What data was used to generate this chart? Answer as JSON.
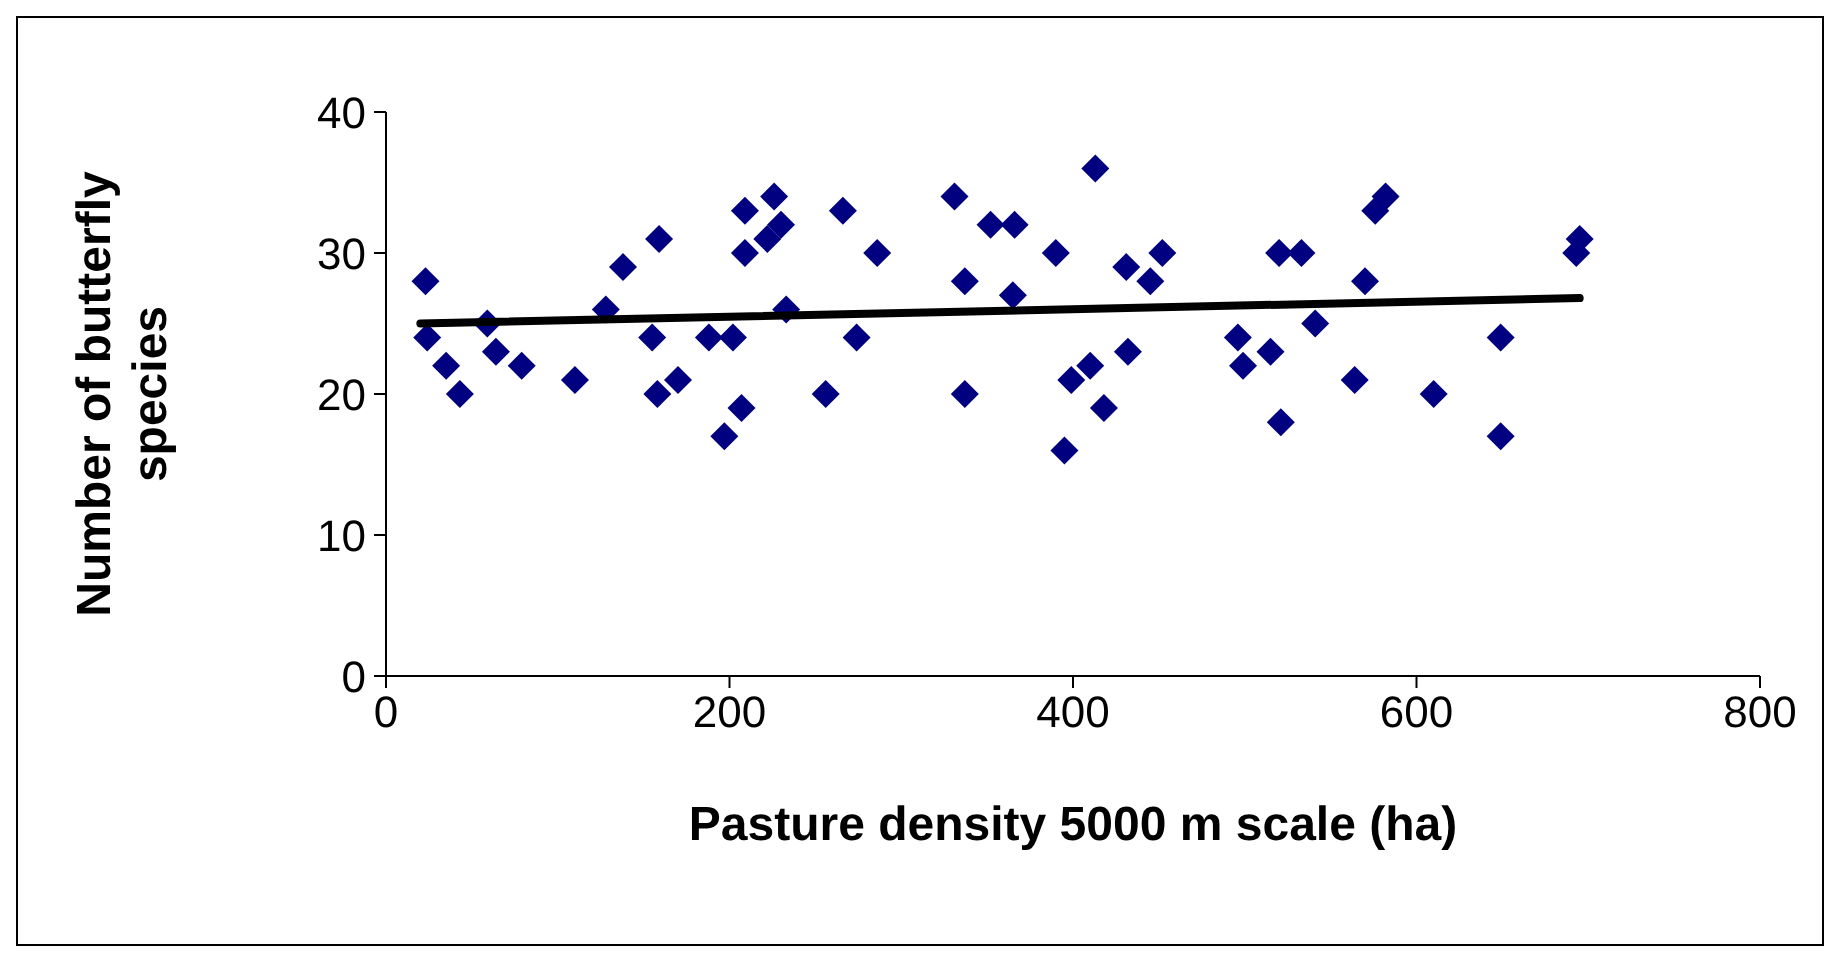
{
  "chart_data": {
    "type": "scatter",
    "xlabel": "Pasture density 5000 m scale (ha)",
    "ylabel": "Number of butterfly species",
    "xlim": [
      0,
      800
    ],
    "xticks": [
      0,
      200,
      400,
      600,
      800
    ],
    "ylim": [
      0,
      40
    ],
    "yticks": [
      0,
      10,
      20,
      30,
      40
    ],
    "grid": false,
    "legend": false,
    "marker": "diamond",
    "series": [
      {
        "color": "#000080",
        "x": [
          23,
          24,
          35,
          43,
          59,
          64,
          79,
          110,
          128,
          138,
          155,
          159,
          158,
          170,
          188,
          197,
          202,
          207,
          209,
          209,
          222,
          226,
          230,
          233,
          256,
          266,
          274,
          286,
          331,
          337,
          337,
          352,
          366,
          365,
          390,
          413,
          399,
          395,
          410,
          418,
          431,
          432,
          445,
          452,
          496,
          499,
          515,
          520,
          533,
          521,
          541,
          564,
          570,
          576,
          582,
          610,
          695,
          693,
          649,
          649
        ],
        "values": [
          28,
          24,
          22,
          20,
          25,
          23,
          22,
          21,
          26,
          29,
          24,
          31,
          20,
          21,
          24,
          17,
          24,
          19,
          33,
          30,
          31,
          34,
          32,
          26,
          20,
          33,
          24,
          30,
          34,
          28,
          20,
          32,
          32,
          27,
          30,
          36,
          21,
          16,
          22,
          19,
          29,
          23,
          28,
          30,
          24,
          22,
          23,
          30,
          30,
          18,
          25,
          21,
          28,
          33,
          34,
          20,
          31,
          30,
          24,
          17
        ]
      },
      {
        "type": "line",
        "color": "#000000",
        "marker": "none",
        "x": [
          20,
          695
        ],
        "values": [
          25,
          26.8
        ]
      }
    ]
  }
}
